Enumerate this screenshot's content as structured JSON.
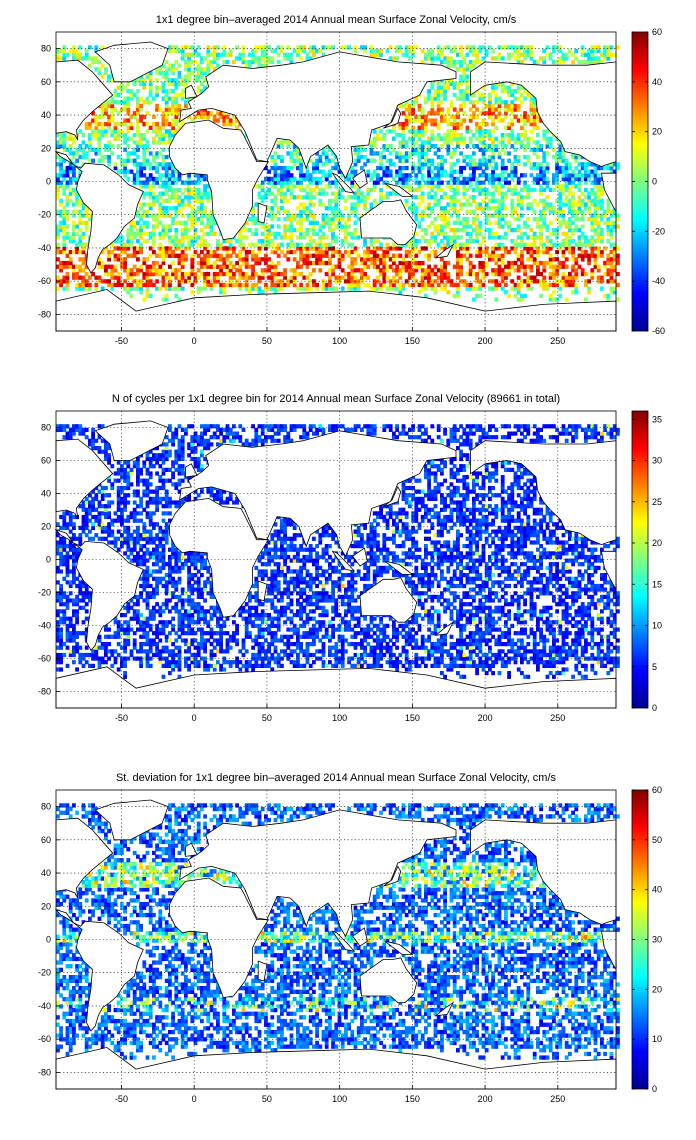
{
  "chart_data": [
    {
      "type": "heatmap",
      "title": "1x1 degree bin–averaged 2014 Annual mean Surface Zonal Velocity, cm/s",
      "xlim": [
        -95,
        290
      ],
      "ylim": [
        -90,
        90
      ],
      "x_ticks": [
        "-50",
        "0",
        "50",
        "100",
        "150",
        "200",
        "250"
      ],
      "y_ticks": [
        "80",
        "60",
        "40",
        "20",
        "0",
        "-20",
        "-40",
        "-60",
        "-80"
      ],
      "colorbar": {
        "colormap": "jet",
        "min": -60,
        "max": 60,
        "ticks": [
          "60",
          "40",
          "20",
          "0",
          "-20",
          "-40",
          "-60"
        ]
      },
      "grid": true
    },
    {
      "type": "heatmap",
      "title": "N of cycles per 1x1 degree bin for 2014 Annual mean Surface Zonal Velocity (89661 in total)",
      "xlim": [
        -95,
        290
      ],
      "ylim": [
        -90,
        90
      ],
      "x_ticks": [
        "-50",
        "0",
        "50",
        "100",
        "150",
        "200",
        "250"
      ],
      "y_ticks": [
        "80",
        "60",
        "40",
        "20",
        "0",
        "-20",
        "-40",
        "-60",
        "-80"
      ],
      "colorbar": {
        "colormap": "jet",
        "min": 0,
        "max": 36,
        "ticks": [
          "35",
          "30",
          "25",
          "20",
          "15",
          "10",
          "5",
          "0"
        ]
      },
      "grid": true
    },
    {
      "type": "heatmap",
      "title": "St. deviation for 1x1 degree bin–averaged 2014 Annual mean Surface Zonal Velocity, cm/s",
      "xlim": [
        -95,
        290
      ],
      "ylim": [
        -90,
        90
      ],
      "x_ticks": [
        "-50",
        "0",
        "50",
        "100",
        "150",
        "200",
        "250"
      ],
      "y_ticks": [
        "80",
        "60",
        "40",
        "20",
        "0",
        "-20",
        "-40",
        "-60",
        "-80"
      ],
      "colorbar": {
        "colormap": "jet",
        "min": 0,
        "max": 60,
        "ticks": [
          "60",
          "50",
          "40",
          "30",
          "20",
          "10",
          "0"
        ]
      },
      "grid": true
    }
  ]
}
